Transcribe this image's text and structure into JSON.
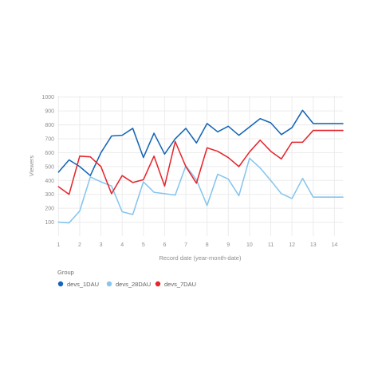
{
  "chart_data": {
    "type": "line",
    "xlabel": "Record date (year-month-date)",
    "ylabel": "Viewers",
    "x_ticks": [
      1,
      2,
      3,
      4,
      5,
      6,
      7,
      8,
      9,
      10,
      11,
      12,
      13,
      14
    ],
    "y_ticks": [
      100,
      200,
      300,
      400,
      500,
      600,
      700,
      800,
      900,
      1000
    ],
    "xlim": [
      0.95,
      14.4
    ],
    "ylim": [
      0,
      1010
    ],
    "grid": true,
    "legend": {
      "title": "Group",
      "placement": "bottom-left"
    },
    "x": [
      1,
      1.5,
      2,
      2.5,
      3,
      3.5,
      4,
      4.5,
      5,
      5.5,
      6,
      6.5,
      7,
      7.5,
      8,
      8.5,
      9,
      9.5,
      10,
      10.5,
      11,
      11.5,
      12,
      12.5,
      13,
      13.5,
      14,
      14.4
    ],
    "series": [
      {
        "name": "devs_1DAU",
        "color": "#1565b7",
        "values": [
          460,
          548,
          500,
          435,
          600,
          720,
          725,
          775,
          565,
          740,
          590,
          700,
          775,
          670,
          810,
          750,
          790,
          725,
          785,
          845,
          815,
          730,
          780,
          905,
          810,
          810,
          810,
          810
        ]
      },
      {
        "name": "devs_28DAU",
        "color": "#85c5ee",
        "values": [
          100,
          95,
          180,
          425,
          390,
          360,
          175,
          155,
          390,
          315,
          305,
          295,
          505,
          405,
          220,
          445,
          410,
          290,
          560,
          490,
          400,
          305,
          270,
          415,
          280,
          280,
          280,
          280
        ]
      },
      {
        "name": "devs_7DAU",
        "color": "#e5262c",
        "values": [
          355,
          300,
          575,
          570,
          500,
          305,
          435,
          385,
          405,
          575,
          360,
          680,
          500,
          380,
          635,
          610,
          565,
          500,
          605,
          690,
          610,
          555,
          675,
          675,
          760,
          760,
          760,
          760
        ]
      }
    ]
  }
}
